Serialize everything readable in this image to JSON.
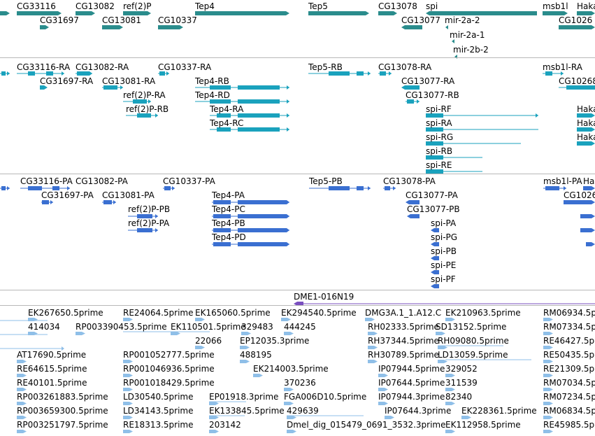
{
  "colors": {
    "gene": "#2a8c8c",
    "transcript": "#1aa2bd",
    "protein": "#3a6fd1",
    "clone": "#7a4fbf",
    "est": "#8fbfe8",
    "divider": "#b8b8b8"
  },
  "genes": [
    {
      "label": "CG33116"
    },
    {
      "label": "CG13082"
    },
    {
      "label": "ref(2)P"
    },
    {
      "label": "Tep4"
    },
    {
      "label": "Tep5"
    },
    {
      "label": "CG13078"
    },
    {
      "label": "spi"
    },
    {
      "label": "msb1l"
    },
    {
      "label": "Haka"
    },
    {
      "label": "CG31697"
    },
    {
      "label": "CG13081"
    },
    {
      "label": "CG10337"
    },
    {
      "label": "CG13077"
    },
    {
      "label": "mir-2a-2"
    },
    {
      "label": "CG1026"
    },
    {
      "label": "mir-2a-1"
    },
    {
      "label": "mir-2b-2"
    }
  ],
  "transcripts": [
    {
      "label": "CG33116-RA"
    },
    {
      "label": "CG13082-RA"
    },
    {
      "label": "CG10337-RA"
    },
    {
      "label": "Tep5-RB"
    },
    {
      "label": "CG13078-RA"
    },
    {
      "label": "msb1l-RA"
    },
    {
      "label": "CG31697-RA"
    },
    {
      "label": "CG13081-RA"
    },
    {
      "label": "Tep4-RB"
    },
    {
      "label": "CG13077-RA"
    },
    {
      "label": "CG10268"
    },
    {
      "label": "ref(2)P-RA"
    },
    {
      "label": "Tep4-RD"
    },
    {
      "label": "CG13077-RB"
    },
    {
      "label": "ref(2)P-RB"
    },
    {
      "label": "Tep4-RA"
    },
    {
      "label": "spi-RF"
    },
    {
      "label": "Haka"
    },
    {
      "label": "Tep4-RC"
    },
    {
      "label": "spi-RA"
    },
    {
      "label": "Haka"
    },
    {
      "label": "spi-RG"
    },
    {
      "label": "Haka"
    },
    {
      "label": "spi-RB"
    },
    {
      "label": "spi-RE"
    }
  ],
  "proteins": [
    {
      "label": "CG33116-PA"
    },
    {
      "label": "CG13082-PA"
    },
    {
      "label": "CG10337-PA"
    },
    {
      "label": "Tep5-PB"
    },
    {
      "label": "CG13078-PA"
    },
    {
      "label": "msb1l-PA"
    },
    {
      "label": "Ha"
    },
    {
      "label": "CG31697-PA"
    },
    {
      "label": "CG13081-PA"
    },
    {
      "label": "Tep4-PA"
    },
    {
      "label": "CG13077-PA"
    },
    {
      "label": "CG1026"
    },
    {
      "label": "ref(2)P-PB"
    },
    {
      "label": "Tep4-PC"
    },
    {
      "label": "CG13077-PB"
    },
    {
      "label": "ref(2)P-PA"
    },
    {
      "label": "Tep4-PB"
    },
    {
      "label": "spi-PA"
    },
    {
      "label": "Tep4-PD"
    },
    {
      "label": "spi-PG"
    },
    {
      "label": "spi-PB"
    },
    {
      "label": "spi-PE"
    },
    {
      "label": "spi-PF"
    }
  ],
  "clone": {
    "label": "DME1-016N19"
  },
  "ests": [
    {
      "label": "EK267650.5prime"
    },
    {
      "label": "RE24064.5prime"
    },
    {
      "label": "EK165060.5prime"
    },
    {
      "label": "EK294540.5prime"
    },
    {
      "label": "DMG3A.1_1.A12.C"
    },
    {
      "label": "EK210963.5prime"
    },
    {
      "label": "RM06934.5p"
    },
    {
      "label": "414034"
    },
    {
      "label": "RP003390453.5prime"
    },
    {
      "label": "EK110501.5prime"
    },
    {
      "label": "329483"
    },
    {
      "label": "444245"
    },
    {
      "label": "RH02333.5prime"
    },
    {
      "label": "SD13152.5prime"
    },
    {
      "label": "RM07334.5p"
    },
    {
      "label": "22066"
    },
    {
      "label": "EP12035.3prime"
    },
    {
      "label": "RH37344.5prime"
    },
    {
      "label": "RH09080.5prime"
    },
    {
      "label": "RE46427.5p"
    },
    {
      "label": "AT17690.5prime"
    },
    {
      "label": "RP001052777.5prime"
    },
    {
      "label": "488195"
    },
    {
      "label": "RH30789.5prime"
    },
    {
      "label": "LD13059.5prime"
    },
    {
      "label": "RE50435.5p"
    },
    {
      "label": "RE64615.5prime"
    },
    {
      "label": "RP001046936.5prime"
    },
    {
      "label": "EK214003.5prime"
    },
    {
      "label": "IP07944.5prime"
    },
    {
      "label": "329052"
    },
    {
      "label": "RE21309.5p"
    },
    {
      "label": "RE40101.5prime"
    },
    {
      "label": "RP001018429.5prime"
    },
    {
      "label": "370236"
    },
    {
      "label": "IP07644.5prime"
    },
    {
      "label": "311539"
    },
    {
      "label": "RM07034.5p"
    },
    {
      "label": "RP003261883.5prime"
    },
    {
      "label": "LD30540.5prime"
    },
    {
      "label": "EP01918.3prime"
    },
    {
      "label": "FGA006D10.5prime"
    },
    {
      "label": "IP07944.3prime"
    },
    {
      "label": "82340"
    },
    {
      "label": "RM07234.5p"
    },
    {
      "label": "RP003659300.5prime"
    },
    {
      "label": "LD34143.5prime"
    },
    {
      "label": "EK133845.5prime"
    },
    {
      "label": "429639"
    },
    {
      "label": "IP07644.3prime"
    },
    {
      "label": "EK228361.5prime"
    },
    {
      "label": "RM06834.5p"
    },
    {
      "label": "RP003251797.5prime"
    },
    {
      "label": "RE18313.5prime"
    },
    {
      "label": "203142"
    },
    {
      "label": "Dmel_dig_015479_0691_3532.3prime"
    },
    {
      "label": "EK112958.5prime"
    },
    {
      "label": "RE45985.5p"
    }
  ]
}
